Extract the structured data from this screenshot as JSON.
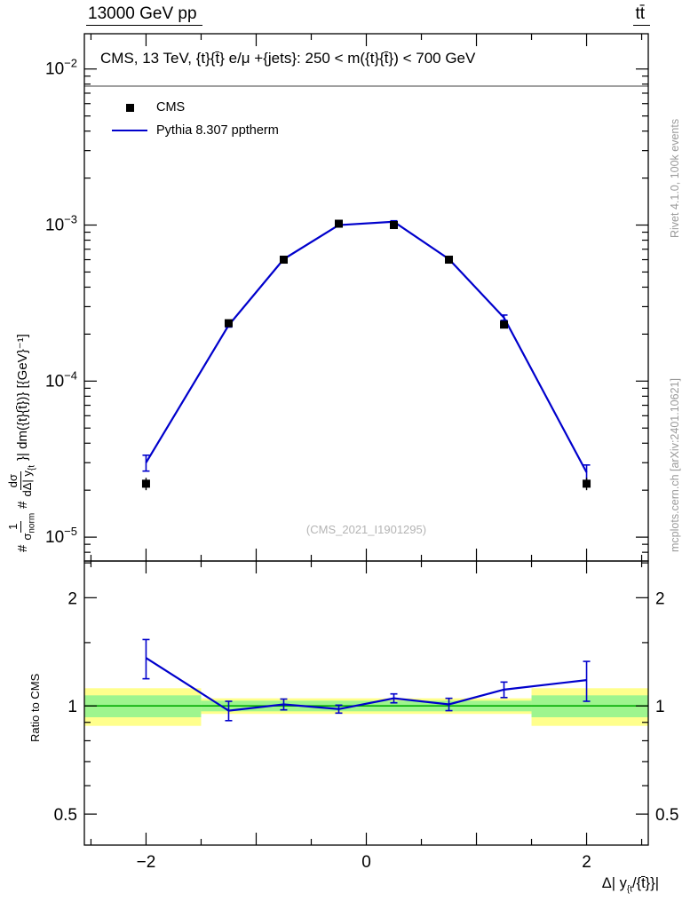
{
  "header": {
    "left": "13000 GeV pp",
    "right": "tt̄"
  },
  "side_notes": {
    "right_top": "Rivet 4.1.0,  100k events",
    "right_bottom": "mcplots.cern.ch [arXiv:2401.10621]"
  },
  "chart_data": [
    {
      "type": "line",
      "title": "CMS, 13 TeV, {t}{t̄} e/μ +{jets}: 250 < m({t}{t̄}) < 700 GeV",
      "watermark": "(CMS_2021_I1901295)",
      "ylabel_parts": {
        "hash1": "#",
        "frac1_num": "1",
        "frac1_den_base": "σ",
        "frac1_den_sub": "norm",
        "hash2": "#",
        "frac2_num": "dσ",
        "frac2_den_base": "dΔ| y",
        "frac2_den_sub": "{t",
        "suffix": "}| dm({t}{t̄})} [{GeV}⁻¹]"
      },
      "xlabel_parts": {
        "base": "Δ| y",
        "sub": "{t",
        "rest": "/{t̄}}|"
      },
      "xlim": [
        -2.56,
        2.56
      ],
      "x_major_ticks": [
        -2,
        -1,
        0,
        1,
        2
      ],
      "x_minor_step": 0.5,
      "xtick_labels": [
        {
          "v": -2,
          "label": "−2"
        },
        {
          "v": 0,
          "label": "0"
        },
        {
          "v": 2,
          "label": "2"
        }
      ],
      "yaxis": {
        "scale": "log",
        "exp_range": [
          -5.153,
          -1.774
        ],
        "decade_labels": [
          -2,
          -3,
          -4,
          -5
        ]
      },
      "x": [
        -2,
        -1.25,
        -0.75,
        -0.25,
        0.25,
        0.75,
        1.25,
        2
      ],
      "series": [
        {
          "name": "CMS",
          "style": "marker",
          "marker": "square",
          "color": "#000000",
          "values": [
            2.2e-05,
            0.000235,
            0.0006,
            0.00102,
            0.001,
            0.0006,
            0.00023,
            2.2e-05
          ],
          "yerr": [
            2e-06,
            8e-06,
            1.5e-05,
            2.5e-05,
            2.5e-05,
            1.5e-05,
            8e-06,
            2e-06
          ]
        },
        {
          "name": "Pythia 8.307 pptherm",
          "style": "line",
          "color": "#0000cc",
          "values": [
            3e-05,
            0.000228,
            0.000605,
            0.001,
            0.00105,
            0.000605,
            0.000255,
            2.6e-05
          ],
          "yerr": [
            3.5e-06,
            6e-06,
            1e-05,
            1.5e-05,
            1.5e-05,
            1e-05,
            1e-05,
            3e-06
          ]
        }
      ]
    },
    {
      "type": "ratio",
      "ylabel": "Ratio to CMS",
      "yaxis": {
        "scale": "log",
        "range": [
          0.41,
          2.53
        ],
        "tick_labels": [
          {
            "v": 2,
            "label": "2"
          },
          {
            "v": 1,
            "label": "1"
          },
          {
            "v": 0.5,
            "label": "0.5"
          }
        ],
        "minor_ticks": [
          0.6,
          0.7,
          0.8,
          0.9,
          1.5,
          2.5
        ]
      },
      "reference_line": {
        "y": 1,
        "color": "#00aa00"
      },
      "band_colors": {
        "outer": "#ffff8c",
        "inner": "#9ef58e"
      },
      "bands": [
        {
          "x0": -2.56,
          "x1": -1.5,
          "outer": [
            0.88,
            1.12
          ],
          "inner": [
            0.93,
            1.07
          ]
        },
        {
          "x0": -1.5,
          "x1": 1.5,
          "outer": [
            0.95,
            1.05
          ],
          "inner": [
            0.966,
            1.034
          ]
        },
        {
          "x0": 1.5,
          "x1": 2.56,
          "outer": [
            0.88,
            1.12
          ],
          "inner": [
            0.93,
            1.07
          ]
        }
      ],
      "color": "#0000cc",
      "x": [
        -2,
        -1.25,
        -0.75,
        -0.25,
        0.25,
        0.75,
        1.25,
        2
      ],
      "values": [
        1.36,
        0.97,
        1.01,
        0.98,
        1.05,
        1.01,
        1.11,
        1.18
      ],
      "yerr": [
        0.17,
        0.06,
        0.035,
        0.025,
        0.03,
        0.04,
        0.055,
        0.15
      ]
    }
  ]
}
